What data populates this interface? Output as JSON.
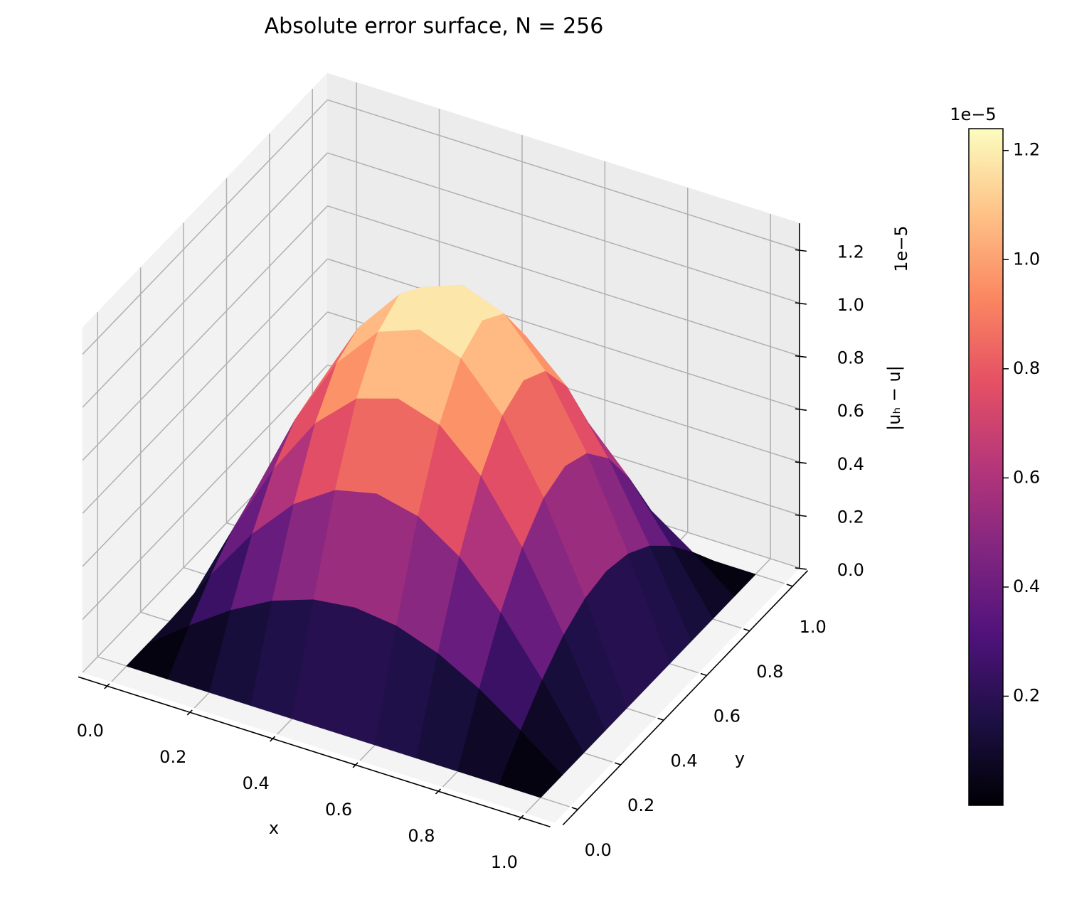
{
  "chart_data": {
    "type": "surface",
    "title": "Absolute error surface, N = 256",
    "xlabel": "x",
    "ylabel": "y",
    "zlabel": "|uₕ − u|",
    "z_offset_label": "1e−5",
    "x": [
      0,
      0.1,
      0.2,
      0.3,
      0.4,
      0.5,
      0.6,
      0.7,
      0.8,
      0.9,
      1
    ],
    "y": [
      0,
      0.1,
      0.2,
      0.3,
      0.4,
      0.5,
      0.6,
      0.7,
      0.8,
      0.9,
      1
    ],
    "z": [
      [
        0,
        0,
        0,
        0,
        0,
        0,
        0,
        0,
        0,
        0,
        0
      ],
      [
        0,
        0.118,
        0.225,
        0.31,
        0.364,
        0.383,
        0.364,
        0.31,
        0.225,
        0.118,
        0
      ],
      [
        0,
        0.225,
        0.429,
        0.59,
        0.693,
        0.729,
        0.693,
        0.59,
        0.429,
        0.225,
        0
      ],
      [
        0,
        0.31,
        0.59,
        0.811,
        0.954,
        1.003,
        0.954,
        0.811,
        0.59,
        0.31,
        0
      ],
      [
        0,
        0.364,
        0.693,
        0.954,
        1.121,
        1.179,
        1.121,
        0.954,
        0.693,
        0.364,
        0
      ],
      [
        0,
        0.383,
        0.729,
        1.003,
        1.179,
        1.24,
        1.179,
        1.003,
        0.729,
        0.383,
        0
      ],
      [
        0,
        0.364,
        0.693,
        0.954,
        1.121,
        1.179,
        1.121,
        0.954,
        0.693,
        0.364,
        0
      ],
      [
        0,
        0.31,
        0.59,
        0.811,
        0.954,
        1.003,
        0.954,
        0.811,
        0.59,
        0.31,
        0
      ],
      [
        0,
        0.225,
        0.429,
        0.59,
        0.693,
        0.729,
        0.693,
        0.59,
        0.429,
        0.225,
        0
      ],
      [
        0,
        0.118,
        0.225,
        0.31,
        0.364,
        0.383,
        0.364,
        0.31,
        0.225,
        0.118,
        0
      ],
      [
        0,
        0,
        0,
        0,
        0,
        0,
        0,
        0,
        0,
        0,
        0
      ]
    ],
    "xlim": [
      -0.07,
      1.07
    ],
    "ylim": [
      -0.07,
      1.07
    ],
    "zlim": [
      0,
      1.3
    ],
    "xticks": [
      {
        "value": 0,
        "label": "0.0"
      },
      0.2,
      0.4,
      0.6,
      0.8,
      {
        "value": 1,
        "label": "1.0"
      }
    ],
    "yticks": [
      {
        "value": 0,
        "label": "0.0"
      },
      0.2,
      0.4,
      0.6,
      0.8,
      {
        "value": 1,
        "label": "1.0"
      }
    ],
    "zticks": [
      {
        "value": 0,
        "label": "0.0"
      },
      0.2,
      0.4,
      0.6,
      0.8,
      {
        "value": 1,
        "label": "1.0"
      },
      1.2
    ],
    "grid": true,
    "colormap": "magma",
    "colorbar": {
      "lim": [
        0,
        1.24
      ],
      "ticks": [
        0.2,
        0.4,
        0.6,
        0.8,
        {
          "value": 1,
          "label": "1.0"
        },
        1.2
      ],
      "offset_label": "1e−5"
    }
  }
}
